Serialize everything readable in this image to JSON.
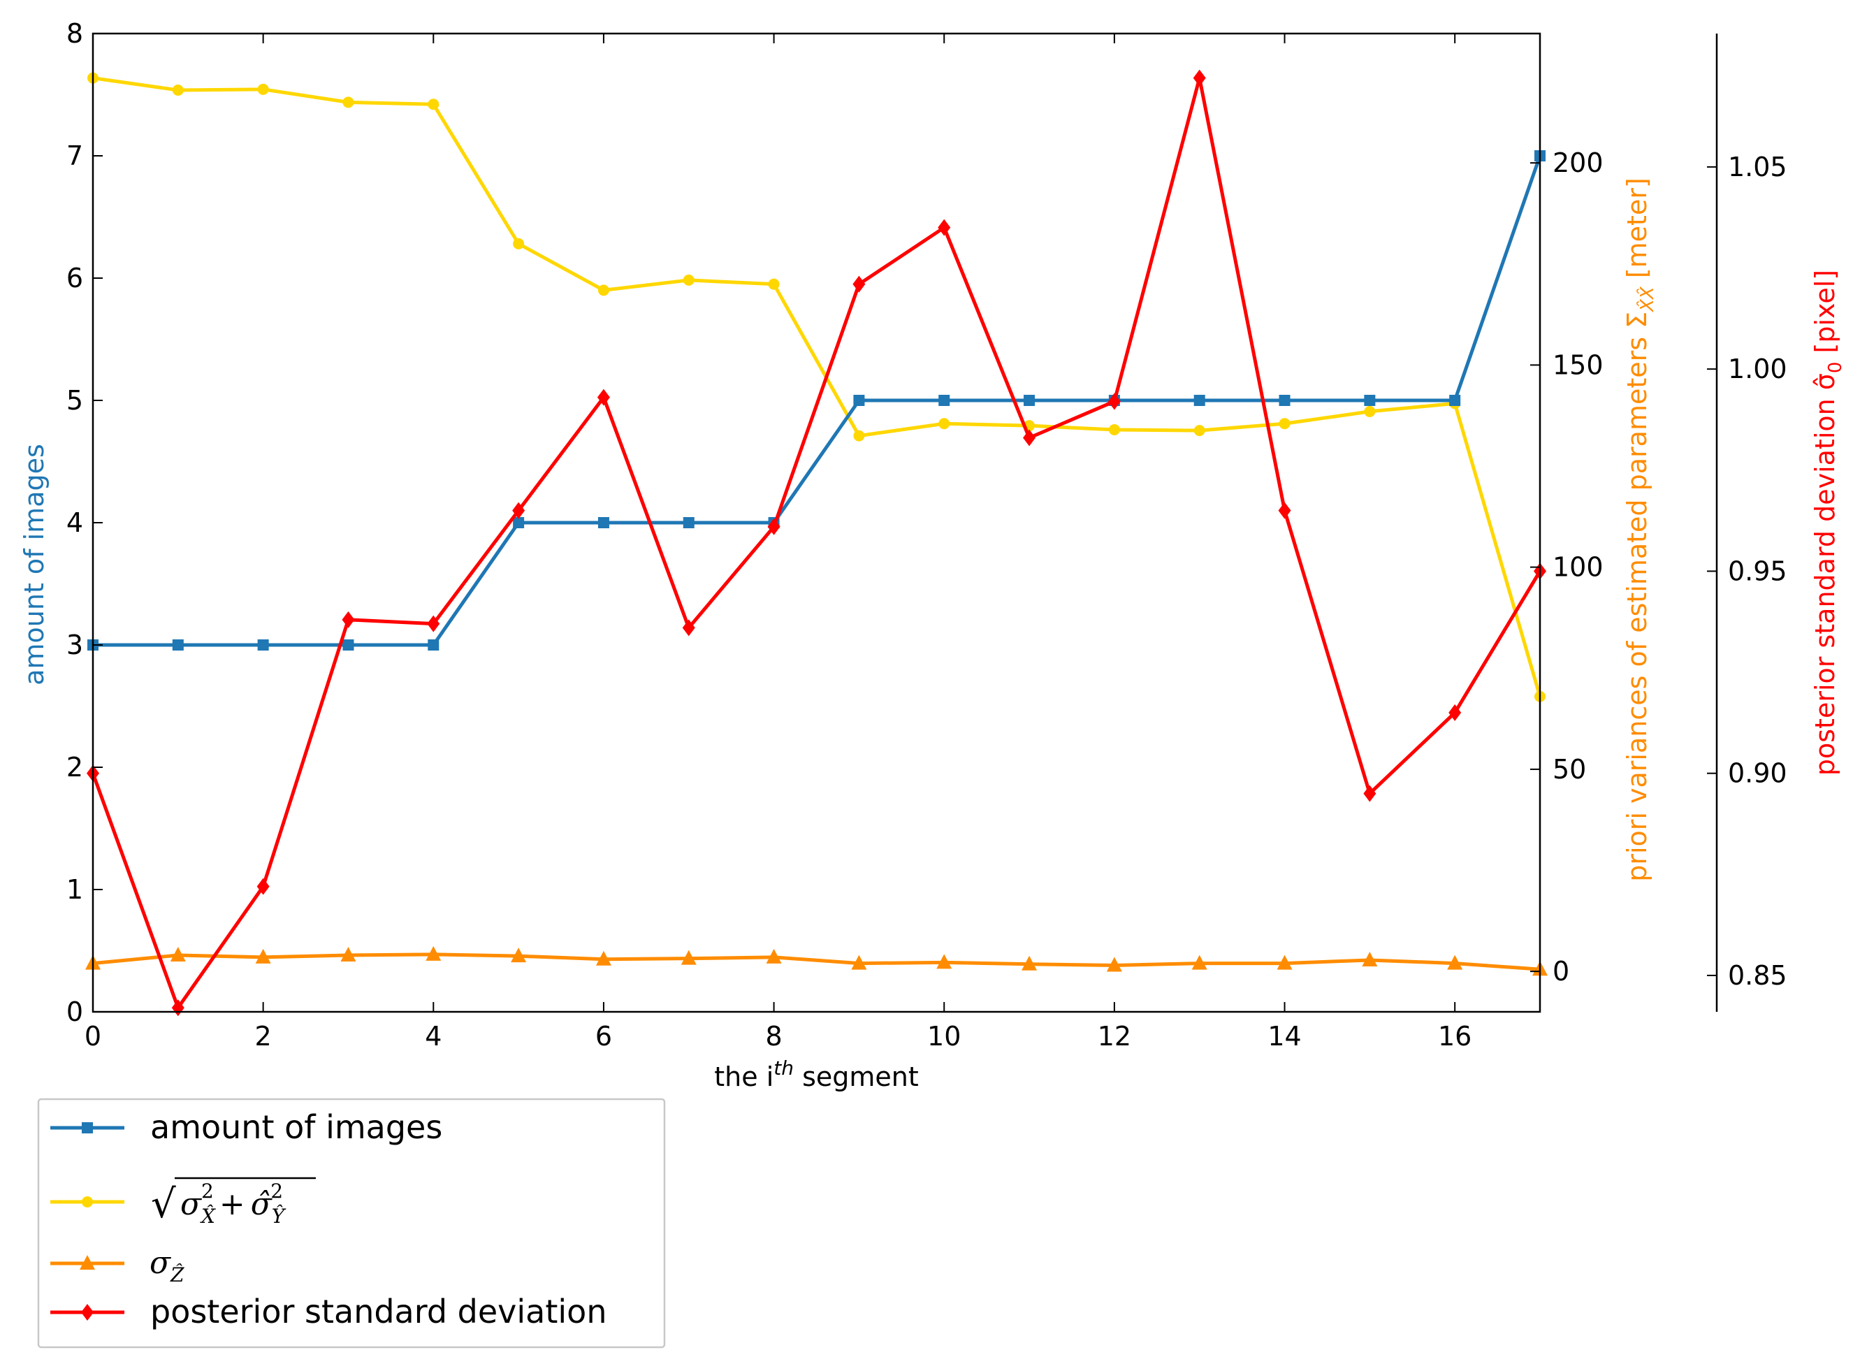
{
  "chart_data": {
    "type": "line",
    "xlabel": {
      "prefix": "the i",
      "sup": "th",
      "suffix": " segment"
    },
    "x": [
      0,
      1,
      2,
      3,
      4,
      5,
      6,
      7,
      8,
      9,
      10,
      11,
      12,
      13,
      14,
      15,
      16,
      17
    ],
    "xlim": [
      0,
      17
    ],
    "xticks": [
      "0",
      "2",
      "4",
      "6",
      "8",
      "10",
      "12",
      "14",
      "16"
    ],
    "grid": false,
    "legend_position": "bottom-left, outside plot",
    "axes": {
      "left": {
        "label": "amount of images",
        "color": "#1f77b4",
        "ylim": [
          0,
          8
        ],
        "ticks": [
          "0",
          "1",
          "2",
          "3",
          "4",
          "5",
          "6",
          "7",
          "8"
        ]
      },
      "right1": {
        "label": "priori variances of estimated parameters Σ",
        "label_sub": "X̂X̂",
        "label_suffix": " [meter]",
        "color": "#ff8c00",
        "ylim": [
          -10,
          232
        ],
        "ticks": [
          "0",
          "50",
          "100",
          "150",
          "200"
        ]
      },
      "right2": {
        "label": "posterior standard deviation σ̂",
        "label_sub": "0",
        "label_suffix": " [pixel]",
        "color": "#ff0000",
        "ylim": [
          0.841,
          1.083
        ],
        "ticks": [
          "0.85",
          "0.90",
          "0.95",
          "1.00",
          "1.05"
        ]
      }
    },
    "series": [
      {
        "name": "amount of images",
        "axis": "left",
        "color": "#1f77b4",
        "marker": "square",
        "values": [
          3,
          3,
          3,
          3,
          3,
          4,
          4,
          4,
          4,
          5,
          5,
          5,
          5,
          5,
          5,
          5,
          5,
          7
        ]
      },
      {
        "name": "sqrt(σX̂² + σ̂Ŷ²)",
        "axis": "right1",
        "color": "#ffd700",
        "marker": "circle",
        "values": [
          221,
          218,
          218.2,
          215,
          214.5,
          180,
          168.5,
          171,
          170,
          132.5,
          135.5,
          135,
          134,
          133.8,
          135.5,
          138.5,
          140.5,
          68
        ]
      },
      {
        "name": "σẐ",
        "axis": "right1",
        "color": "#ff8c00",
        "marker": "triangle",
        "values": [
          2,
          4,
          3.5,
          4,
          4.2,
          3.8,
          3,
          3.2,
          3.5,
          2,
          2.2,
          1.8,
          1.5,
          2,
          2,
          2.8,
          2,
          0.5
        ]
      },
      {
        "name": "posterior standard deviation",
        "axis": "right2",
        "color": "#ff0000",
        "marker": "diamond",
        "values": [
          0.9,
          0.842,
          0.872,
          0.938,
          0.937,
          0.965,
          0.993,
          0.936,
          0.961,
          1.021,
          1.035,
          0.983,
          0.992,
          1.072,
          0.965,
          0.895,
          0.915,
          0.95
        ]
      }
    ],
    "legend": {
      "entries": [
        {
          "series": 0,
          "label": "amount of images"
        },
        {
          "series": 1,
          "label_parts": [
            "√",
            "σ",
            "X̂",
            "2",
            "+",
            "σ̂",
            "Ŷ",
            "2"
          ]
        },
        {
          "series": 2,
          "label_parts": [
            "σ",
            "Ẑ"
          ]
        },
        {
          "series": 3,
          "label": "posterior standard deviation"
        }
      ]
    }
  }
}
